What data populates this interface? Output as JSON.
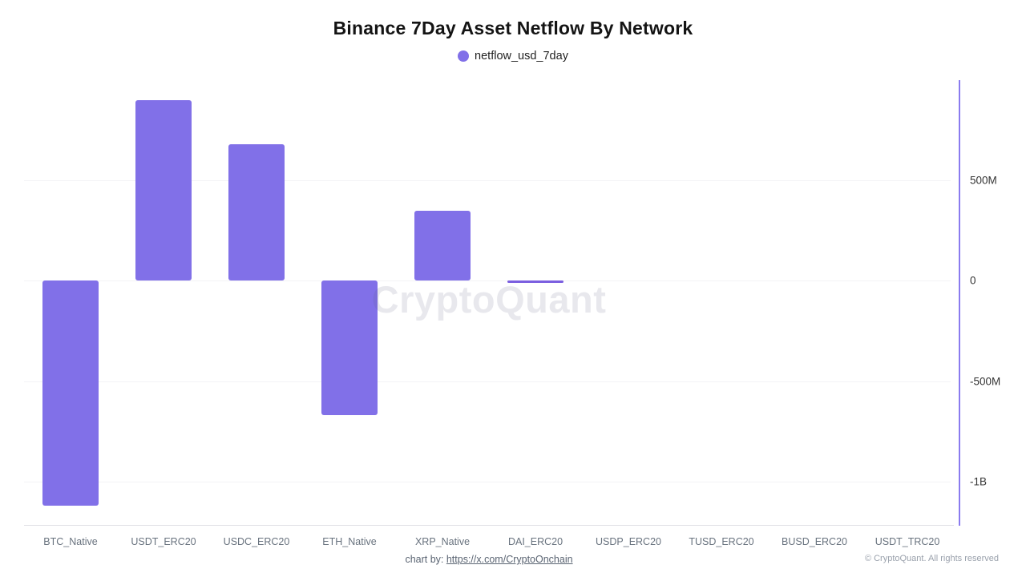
{
  "title": "Binance 7Day Asset Netflow By Network",
  "legend": {
    "label": "netflow_usd_7day"
  },
  "watermark": "CryptoQuant",
  "footer": {
    "credit_prefix": "chart by:",
    "credit_link": "https://x.com/CryptoOnchain",
    "copyright": "© CryptoQuant. All rights reserved"
  },
  "colors": {
    "bar": "#8170e8",
    "thin_bar": "#7b5fe0",
    "axis_line": "#8a7bef",
    "legend_dot": "#8170e8"
  },
  "chart_data": {
    "type": "bar",
    "title": "Binance 7Day Asset Netflow By Network",
    "series_name": "netflow_usd_7day",
    "unit": "USD",
    "categories": [
      "BTC_Native",
      "USDT_ERC20",
      "USDC_ERC20",
      "ETH_Native",
      "XRP_Native",
      "DAI_ERC20",
      "USDP_ERC20",
      "TUSD_ERC20",
      "BUSD_ERC20",
      "USDT_TRC20"
    ],
    "values_millions": [
      -1120,
      900,
      680,
      -670,
      350,
      -5,
      0,
      0,
      0,
      0
    ],
    "y_ticks": [
      {
        "label": "500M",
        "value": 500
      },
      {
        "label": "0",
        "value": 0
      },
      {
        "label": "-500M",
        "value": -500
      },
      {
        "label": "-1B",
        "value": -1000
      }
    ],
    "ylim_millions": [
      -1220,
      1000
    ],
    "grid": true,
    "legend_position": "top",
    "xlabel": "",
    "ylabel": ""
  }
}
